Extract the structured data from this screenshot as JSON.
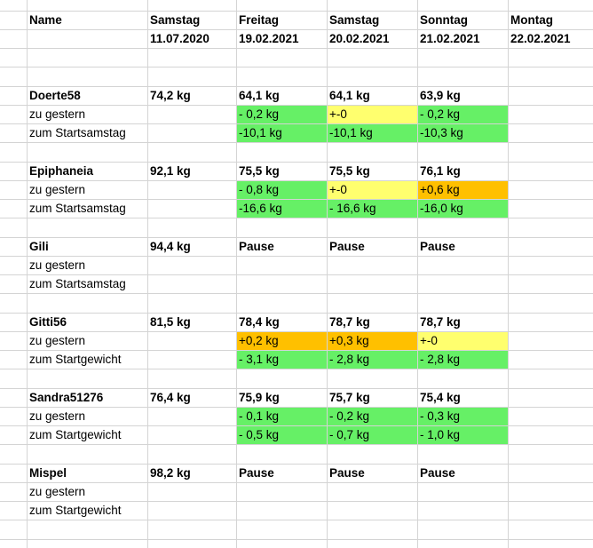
{
  "table": {
    "rows": [
      {
        "bold": true,
        "cells": [
          "Name",
          "Samstag",
          "Freitag",
          "Samstag",
          "Sonntag",
          "Montag"
        ]
      },
      {
        "bold": true,
        "cells": [
          null,
          "11.07.2020",
          "19.02.2021",
          "20.02.2021",
          "21.02.2021",
          "22.02.2021"
        ]
      },
      {
        "cells": []
      },
      {
        "cells": []
      },
      {
        "bold": true,
        "cells": [
          "Doerte58",
          "74,2 kg",
          "64,1 kg",
          "64,1 kg",
          "63,9 kg"
        ]
      },
      {
        "cells": [
          "zu gestern",
          null,
          {
            "text": "- 0,2 kg",
            "fill": "#66f066"
          },
          {
            "text": "+-0",
            "fill": "#ffff6e"
          },
          {
            "text": "- 0,2 kg",
            "fill": "#66f066"
          }
        ]
      },
      {
        "cells": [
          "zum Startsamstag",
          null,
          {
            "text": "-10,1 kg",
            "fill": "#66f066"
          },
          {
            "text": "-10,1 kg",
            "fill": "#66f066"
          },
          {
            "text": "-10,3 kg",
            "fill": "#66f066"
          }
        ]
      },
      {
        "cells": []
      },
      {
        "bold": true,
        "cells": [
          "Epiphaneia",
          "92,1 kg",
          "75,5 kg",
          "75,5 kg",
          "76,1 kg"
        ]
      },
      {
        "cells": [
          "zu gestern",
          null,
          {
            "text": "- 0,8 kg",
            "fill": "#66f066"
          },
          {
            "text": "+-0",
            "fill": "#ffff6e"
          },
          {
            "text": "+0,6 kg",
            "fill": "#ffc000"
          }
        ]
      },
      {
        "cells": [
          "zum Startsamstag",
          null,
          {
            "text": "-16,6 kg",
            "fill": "#66f066"
          },
          {
            "text": "- 16,6 kg",
            "fill": "#66f066"
          },
          {
            "text": "-16,0 kg",
            "fill": "#66f066"
          }
        ]
      },
      {
        "cells": []
      },
      {
        "bold": true,
        "cells": [
          "Gili",
          "94,4 kg",
          "Pause",
          "Pause",
          "Pause"
        ]
      },
      {
        "cells": [
          "zu gestern"
        ]
      },
      {
        "cells": [
          "zum Startsamstag"
        ]
      },
      {
        "cells": []
      },
      {
        "bold": true,
        "cells": [
          "Gitti56",
          "81,5 kg",
          "78,4 kg",
          "78,7 kg",
          "78,7 kg"
        ]
      },
      {
        "cells": [
          "zu gestern",
          null,
          {
            "text": "+0,2 kg",
            "fill": "#ffc000"
          },
          {
            "text": "+0,3 kg",
            "fill": "#ffc000"
          },
          {
            "text": "+-0",
            "fill": "#ffff6e"
          }
        ]
      },
      {
        "cells": [
          "zum Startgewicht",
          null,
          {
            "text": "- 3,1 kg",
            "fill": "#66f066"
          },
          {
            "text": "- 2,8 kg",
            "fill": "#66f066"
          },
          {
            "text": "- 2,8 kg",
            "fill": "#66f066"
          }
        ]
      },
      {
        "cells": []
      },
      {
        "bold": true,
        "cells": [
          "Sandra51276",
          "76,4 kg",
          "75,9 kg",
          "75,7 kg",
          "75,4 kg"
        ]
      },
      {
        "cells": [
          "zu gestern",
          null,
          {
            "text": "- 0,1 kg",
            "fill": "#66f066"
          },
          {
            "text": "- 0,2 kg",
            "fill": "#66f066"
          },
          {
            "text": "- 0,3 kg",
            "fill": "#66f066"
          }
        ]
      },
      {
        "cells": [
          "zum Startgewicht",
          null,
          {
            "text": "- 0,5 kg",
            "fill": "#66f066"
          },
          {
            "text": "- 0,7 kg",
            "fill": "#66f066"
          },
          {
            "text": "- 1,0 kg",
            "fill": "#66f066"
          }
        ]
      },
      {
        "cells": []
      },
      {
        "bold": true,
        "cells": [
          "Mispel",
          "98,2 kg",
          "Pause",
          "Pause",
          "Pause"
        ]
      },
      {
        "cells": [
          "zu gestern"
        ]
      },
      {
        "cells": [
          "zum Startgewicht"
        ]
      },
      {
        "cells": []
      }
    ]
  }
}
